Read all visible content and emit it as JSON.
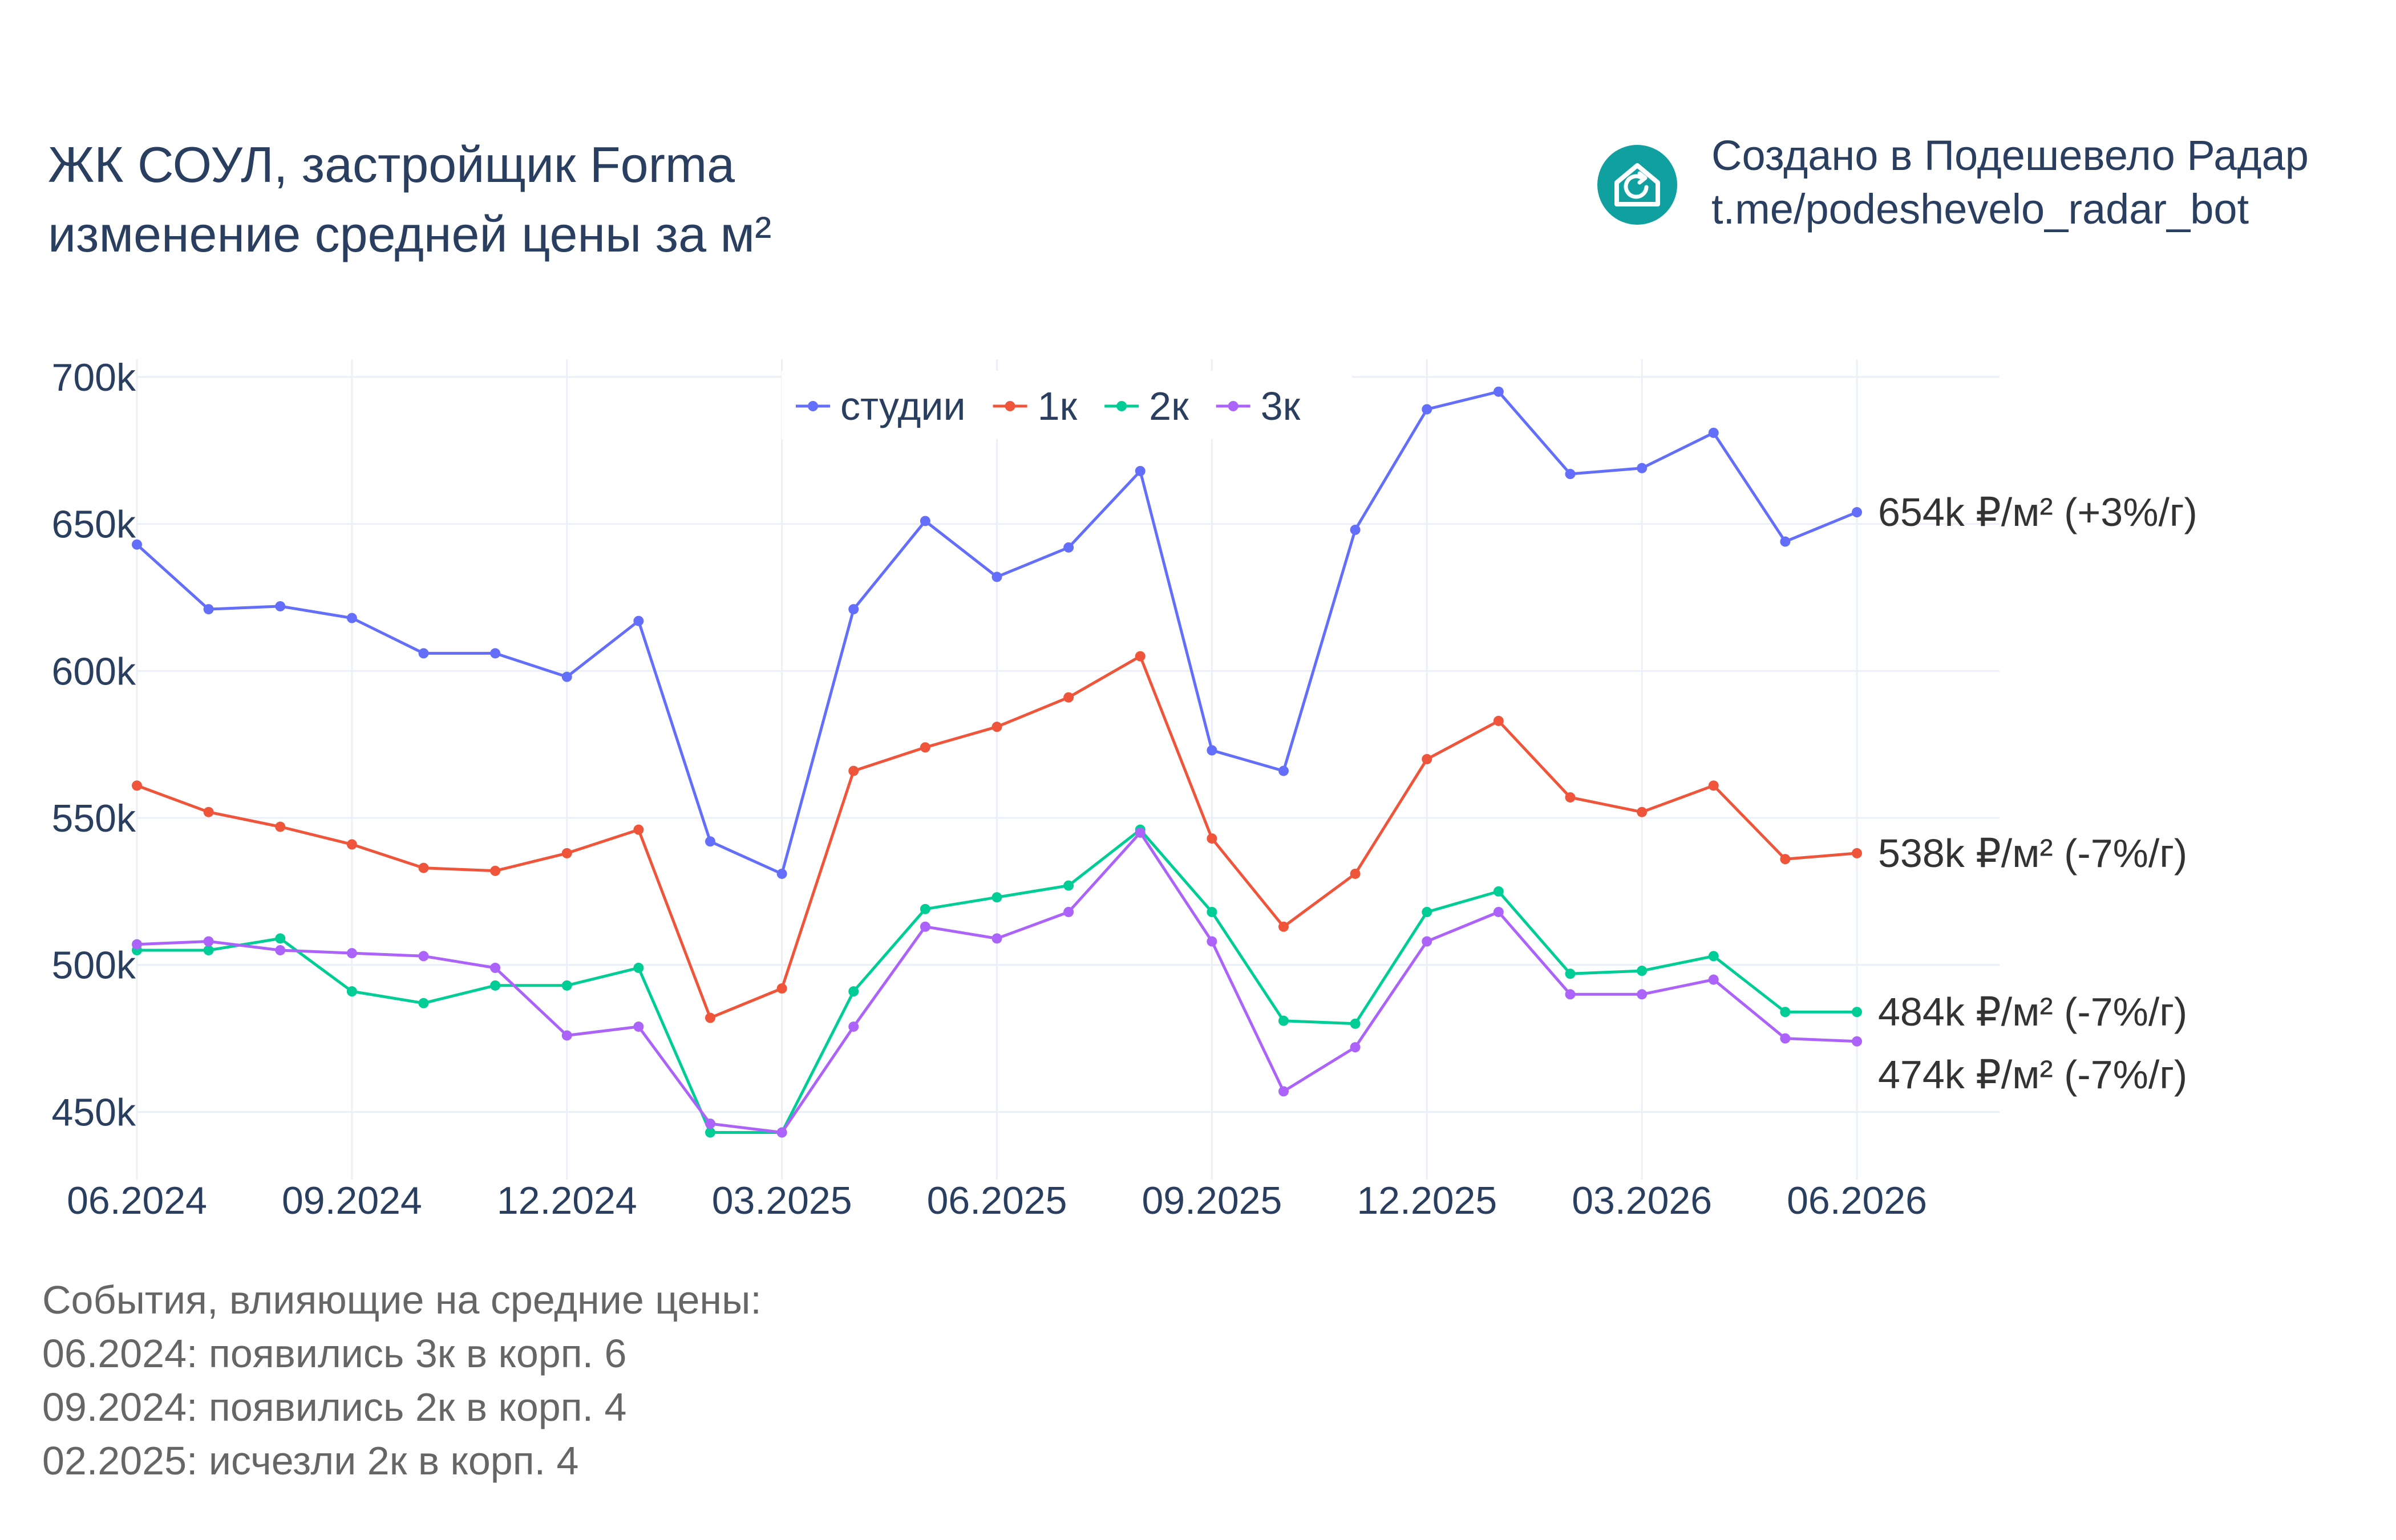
{
  "header": {
    "title_line1": "ЖК СОУЛ, застройщик Forma",
    "title_line2": "изменение средней цены за м²"
  },
  "brand": {
    "icon": "house-refresh-icon",
    "color": "#11a0a0",
    "line1": "Создано в Подешевело Радар",
    "line2": "t.me/podeshevelo_radar_bot"
  },
  "events": {
    "heading": "События, влияющие на средние цены:",
    "items": [
      "06.2024: появились 3к в корп. 6",
      "09.2024: появились 2к в корп. 4",
      "02.2025: исчезли 2к в корп. 4"
    ]
  },
  "chart_data": {
    "type": "line",
    "x": [
      "06.2024",
      "07.2024",
      "08.2024",
      "09.2024",
      "10.2024",
      "11.2024",
      "12.2024",
      "01.2025",
      "02.2025",
      "03.2025",
      "04.2025",
      "05.2025",
      "06.2025",
      "07.2025",
      "08.2025",
      "09.2025",
      "10.2025",
      "11.2025",
      "12.2025",
      "01.2026",
      "02.2026",
      "03.2026",
      "04.2026",
      "05.2026",
      "06.2026"
    ],
    "x_ticks": [
      "06.2024",
      "09.2024",
      "12.2024",
      "03.2025",
      "06.2025",
      "09.2025",
      "12.2025",
      "03.2026",
      "06.2026"
    ],
    "y_ticks": [
      "450k",
      "500k",
      "550k",
      "600k",
      "650k",
      "700k"
    ],
    "y_tick_values": [
      450000,
      500000,
      550000,
      600000,
      650000,
      700000
    ],
    "ylim": [
      427000,
      706000
    ],
    "grid": true,
    "legend_position": "top-center",
    "series": [
      {
        "name": "студии",
        "color": "#636efa",
        "values": [
          643000,
          621000,
          622000,
          618000,
          606000,
          606000,
          598000,
          617000,
          542000,
          531000,
          621000,
          651000,
          632000,
          642000,
          668000,
          573000,
          566000,
          648000,
          689000,
          695000,
          667000,
          669000,
          681000,
          644000,
          654000
        ],
        "end_label": "654k ₽/м² (+3%/г)"
      },
      {
        "name": "1к",
        "color": "#ef553b",
        "values": [
          561000,
          552000,
          547000,
          541000,
          533000,
          532000,
          538000,
          546000,
          482000,
          492000,
          566000,
          574000,
          581000,
          591000,
          605000,
          543000,
          513000,
          531000,
          570000,
          583000,
          557000,
          552000,
          561000,
          536000,
          538000
        ],
        "end_label": "538k ₽/м² (-7%/г)"
      },
      {
        "name": "2к",
        "color": "#00cc96",
        "values": [
          505000,
          505000,
          509000,
          491000,
          487000,
          493000,
          493000,
          499000,
          443000,
          443000,
          491000,
          519000,
          523000,
          527000,
          546000,
          518000,
          481000,
          480000,
          518000,
          525000,
          497000,
          498000,
          503000,
          484000,
          484000
        ],
        "end_label": "484k ₽/м² (-7%/г)"
      },
      {
        "name": "3к",
        "color": "#ab63fa",
        "values": [
          507000,
          508000,
          505000,
          504000,
          503000,
          499000,
          476000,
          479000,
          446000,
          443000,
          479000,
          513000,
          509000,
          518000,
          545000,
          508000,
          457000,
          472000,
          508000,
          518000,
          490000,
          490000,
          495000,
          475000,
          474000
        ],
        "end_label": "474k ₽/м² (-7%/г)"
      }
    ]
  }
}
